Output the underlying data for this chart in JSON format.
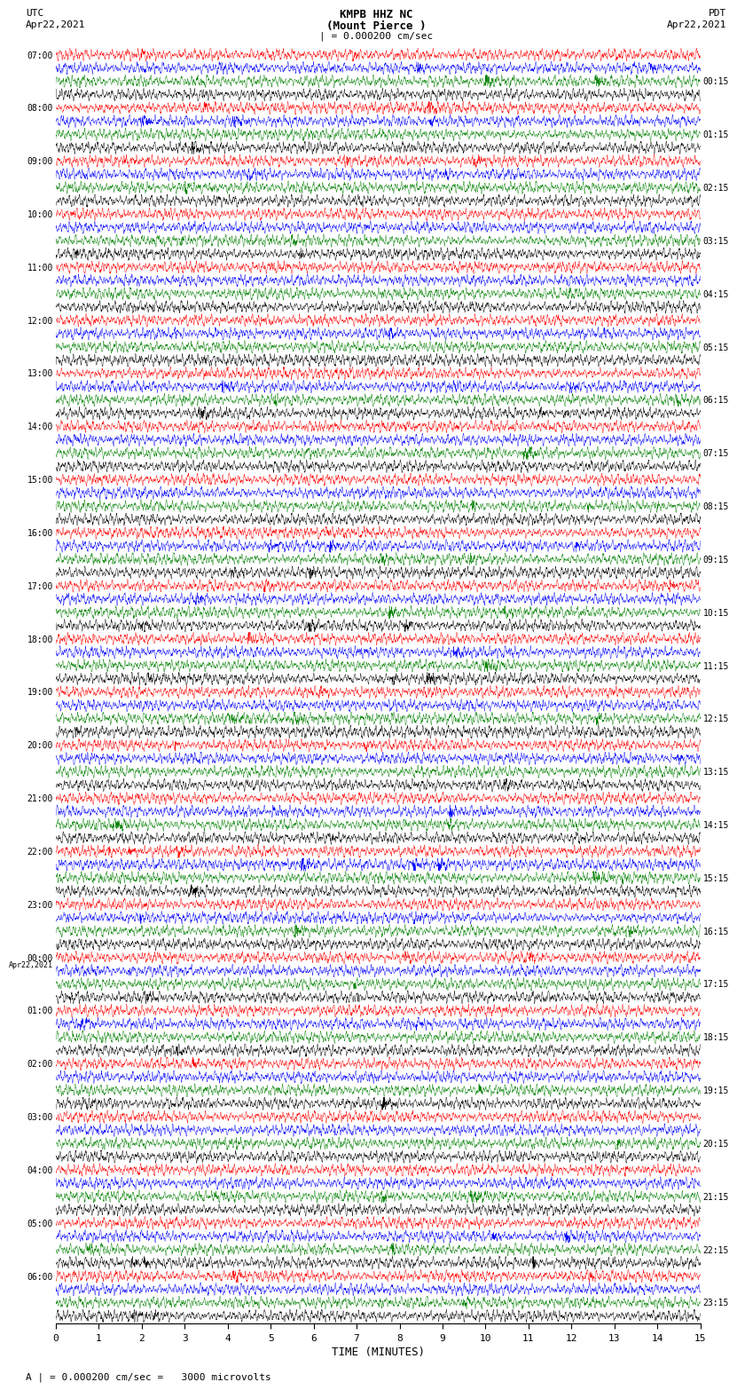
{
  "title_line1": "KMPB HHZ NC",
  "title_line2": "(Mount Pierce )",
  "title_line3": "| = 0.000200 cm/sec",
  "utc_label": "UTC",
  "utc_date": "Apr22,2021",
  "pdt_label": "PDT",
  "pdt_date": "Apr22,2021",
  "left_times": [
    "07:00",
    "08:00",
    "09:00",
    "10:00",
    "11:00",
    "12:00",
    "13:00",
    "14:00",
    "15:00",
    "16:00",
    "17:00",
    "18:00",
    "19:00",
    "20:00",
    "21:00",
    "22:00",
    "23:00",
    "Apr22,2021",
    "00:00",
    "01:00",
    "02:00",
    "03:00",
    "04:00",
    "05:00",
    "06:00"
  ],
  "right_times": [
    "00:15",
    "01:15",
    "02:15",
    "03:15",
    "04:15",
    "05:15",
    "06:15",
    "07:15",
    "08:15",
    "09:15",
    "10:15",
    "11:15",
    "12:15",
    "13:15",
    "14:15",
    "15:15",
    "16:15",
    "17:15",
    "18:15",
    "19:15",
    "20:15",
    "21:15",
    "22:15",
    "23:15"
  ],
  "xlabel": "TIME (MINUTES)",
  "xticks": [
    0,
    1,
    2,
    3,
    4,
    5,
    6,
    7,
    8,
    9,
    10,
    11,
    12,
    13,
    14,
    15
  ],
  "bottom_label": "A | = 0.000200 cm/sec =   3000 microvolts",
  "colors": [
    "red",
    "blue",
    "green",
    "black"
  ],
  "n_rows": 96,
  "n_points": 3600,
  "amplitude": 0.48,
  "background": "white",
  "trace_lw": 0.3
}
